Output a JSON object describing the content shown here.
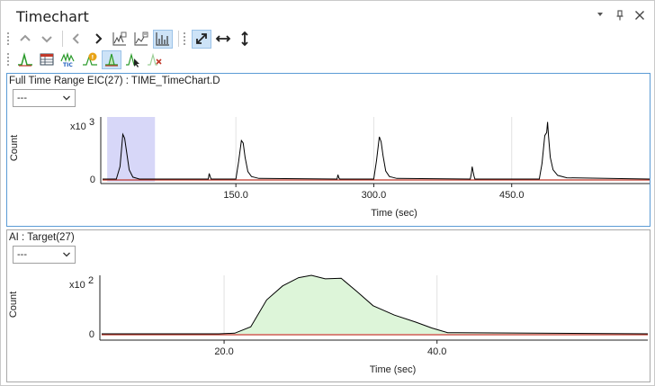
{
  "window": {
    "title": "Timechart",
    "icons": [
      "dropdown-arrow-icon",
      "pin-icon",
      "close-icon"
    ]
  },
  "toolbar1": {
    "buttons": [
      "up-arrow-icon",
      "down-arrow-icon",
      "back-arrow-icon",
      "forward-arrow-icon",
      "overlay-chart-icon",
      "compare-chart-icon",
      "bar-chart-icon",
      "autoscale-both-icon",
      "autoscale-x-icon",
      "autoscale-y-icon"
    ]
  },
  "toolbar2": {
    "buttons": [
      "integrate-peak-icon",
      "table-icon",
      "tic-icon",
      "peak-flag-icon",
      "peak-area-icon",
      "peak-select-icon",
      "peak-delete-icon"
    ]
  },
  "panel1": {
    "title": "Full Time Range EIC(27) : TIME_TimeChart.D",
    "combo_value": "---",
    "y_exponent": "x10",
    "y_exponent_power": "3",
    "ylabel": "Count",
    "xlabel": "Time (sec)",
    "y_ticks": [
      "0"
    ],
    "x_ticks": [
      "150.0",
      "300.0",
      "450.0"
    ]
  },
  "panel2": {
    "title": "AI : Target(27)",
    "combo_value": "---",
    "y_exponent": "x10",
    "y_exponent_power": "2",
    "ylabel": "Count",
    "xlabel": "Time (sec)",
    "y_ticks": [
      "0"
    ],
    "x_ticks": [
      "20.0",
      "40.0"
    ]
  },
  "chart_data": [
    {
      "type": "line",
      "title": "Full Time Range EIC(27) : TIME_TimeChart.D",
      "xlabel": "Time (sec)",
      "ylabel": "Count",
      "xlim": [
        5,
        600
      ],
      "ylim": [
        0,
        1.0
      ],
      "x_ticks": [
        150,
        300,
        450
      ],
      "highlight_range": [
        10,
        62
      ],
      "grid": true,
      "series": [
        {
          "x": [
            5,
            20,
            24,
            27,
            29,
            31,
            34,
            38,
            45,
            120,
            121,
            122,
            123,
            150,
            153,
            156,
            158,
            160,
            163,
            167,
            175,
            260,
            261,
            262,
            263,
            300,
            303,
            306,
            308,
            310,
            313,
            317,
            325,
            405,
            406,
            407,
            408,
            409,
            410,
            480,
            483,
            486,
            488,
            489,
            490,
            492,
            495,
            500,
            510,
            600
          ],
          "y": [
            0,
            0,
            0.2,
            0.72,
            0.66,
            0.45,
            0.15,
            0.03,
            0,
            0,
            0.09,
            0.04,
            0,
            0,
            0.28,
            0.62,
            0.58,
            0.35,
            0.12,
            0.04,
            0.01,
            0,
            0.07,
            0.02,
            0,
            0,
            0.3,
            0.68,
            0.6,
            0.38,
            0.13,
            0.04,
            0.01,
            0,
            0.08,
            0.2,
            0.12,
            0.05,
            0,
            0,
            0.25,
            0.7,
            0.75,
            0.92,
            0.7,
            0.35,
            0.15,
            0.06,
            0.02,
            0
          ]
        }
      ]
    },
    {
      "type": "area",
      "title": "AI : Target(27)",
      "xlabel": "Time (sec)",
      "ylabel": "Count",
      "xlim": [
        8.5,
        59.8
      ],
      "ylim": [
        0,
        1.0
      ],
      "x_ticks": [
        20,
        40
      ],
      "grid": true,
      "series": [
        {
          "x": [
            8.5,
            19.5,
            21,
            22.5,
            24,
            25.5,
            27,
            28.2,
            29.5,
            31,
            32.5,
            34,
            36,
            38,
            39.5,
            41,
            59.8
          ],
          "y": [
            0,
            0,
            0.01,
            0.12,
            0.58,
            0.82,
            0.96,
            1.0,
            0.94,
            0.95,
            0.72,
            0.48,
            0.32,
            0.2,
            0.1,
            0.02,
            0
          ]
        }
      ]
    }
  ]
}
